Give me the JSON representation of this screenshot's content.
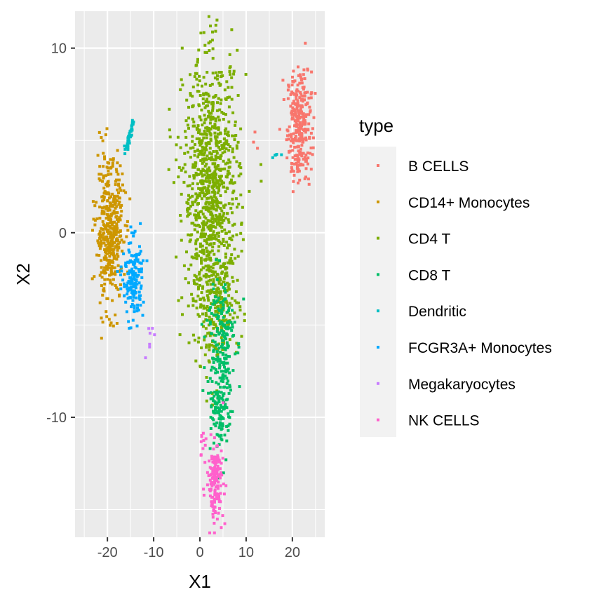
{
  "chart_data": {
    "type": "scatter",
    "title": "",
    "xlabel": "X1",
    "ylabel": "X2",
    "xlim": [
      -27,
      27
    ],
    "ylim": [
      -16.5,
      12
    ],
    "xticks": [
      -20,
      -10,
      0,
      10,
      20
    ],
    "yticks": [
      -10,
      0,
      10
    ],
    "xtick_labels": [
      "-20",
      "-10",
      "0",
      "10",
      "20"
    ],
    "ytick_labels": [
      "-10",
      "0",
      "10"
    ],
    "grid": true,
    "panel_background": "#ebebeb",
    "legend": {
      "title": "type",
      "position": "right"
    },
    "series": [
      {
        "name": "B CELLS",
        "color": "#F8766D",
        "clusters": [
          {
            "cx": 21.5,
            "cy": 5.8,
            "sx": 1.3,
            "sy": 1.5,
            "n": 300
          },
          {
            "cx": 12,
            "cy": 5.0,
            "sx": 0.4,
            "sy": 0.4,
            "n": 3
          }
        ]
      },
      {
        "name": "CD14+ Monocytes",
        "color": "#CD9600",
        "clusters": [
          {
            "cx": -19.5,
            "cy": 0.0,
            "sx": 1.5,
            "sy": 1.9,
            "n": 420
          }
        ]
      },
      {
        "name": "CD4 T",
        "color": "#7CAE00",
        "clusters": [
          {
            "cx": 2.5,
            "cy": 2.5,
            "sx": 3.0,
            "sy": 3.5,
            "n": 950
          },
          {
            "cx": 3.5,
            "cy": -4.0,
            "sx": 2.5,
            "sy": 1.6,
            "n": 200
          }
        ]
      },
      {
        "name": "CD8 T",
        "color": "#00BE67",
        "clusters": [
          {
            "cx": 4.5,
            "cy": -6.0,
            "sx": 1.5,
            "sy": 2.0,
            "n": 200
          },
          {
            "cx": 4.5,
            "cy": -10.0,
            "sx": 1.0,
            "sy": 1.2,
            "n": 90
          }
        ]
      },
      {
        "name": "Dendritic",
        "color": "#00BFC4",
        "curves": [
          {
            "x0": -16,
            "y0": 4.4,
            "x1": -14.5,
            "y1": 6.0,
            "n": 40
          }
        ],
        "clusters": [
          {
            "cx": 16.5,
            "cy": 4.2,
            "sx": 0.6,
            "sy": 0.1,
            "n": 5
          }
        ]
      },
      {
        "name": "FCGR3A+ Monocytes",
        "color": "#00A9FF",
        "clusters": [
          {
            "cx": -14.5,
            "cy": -2.5,
            "sx": 1.1,
            "sy": 1.1,
            "n": 170
          }
        ]
      },
      {
        "name": "Megakaryocytes",
        "color": "#C77CFF",
        "clusters": [
          {
            "cx": -11.0,
            "cy": -5.8,
            "sx": 0.5,
            "sy": 0.6,
            "n": 7
          }
        ]
      },
      {
        "name": "NK CELLS",
        "color": "#FF61CC",
        "clusters": [
          {
            "cx": 3.3,
            "cy": -13.5,
            "sx": 0.9,
            "sy": 1.0,
            "n": 150
          },
          {
            "cx": 0.5,
            "cy": -11.3,
            "sx": 0.3,
            "sy": 0.4,
            "n": 10
          }
        ]
      }
    ]
  }
}
